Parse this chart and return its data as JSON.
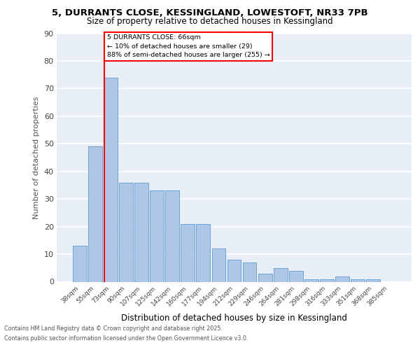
{
  "title1": "5, DURRANTS CLOSE, KESSINGLAND, LOWESTOFT, NR33 7PB",
  "title2": "Size of property relative to detached houses in Kessingland",
  "xlabel": "Distribution of detached houses by size in Kessingland",
  "ylabel": "Number of detached properties",
  "categories": [
    "38sqm",
    "55sqm",
    "73sqm",
    "90sqm",
    "107sqm",
    "125sqm",
    "142sqm",
    "160sqm",
    "177sqm",
    "194sqm",
    "212sqm",
    "229sqm",
    "246sqm",
    "264sqm",
    "281sqm",
    "298sqm",
    "316sqm",
    "333sqm",
    "351sqm",
    "368sqm",
    "385sqm"
  ],
  "bar_vals": [
    13,
    49,
    74,
    36,
    36,
    33,
    33,
    21,
    21,
    12,
    8,
    7,
    3,
    5,
    4,
    1,
    1,
    2,
    1,
    1,
    0
  ],
  "bar_color": "#aec6e8",
  "bar_edge_color": "#5b9bd5",
  "vline_color": "red",
  "annotation_title": "5 DURRANTS CLOSE: 66sqm",
  "annotation_line1": "← 10% of detached houses are smaller (29)",
  "annotation_line2": "88% of semi-detached houses are larger (255) →",
  "annotation_box_color": "red",
  "ylim": [
    0,
    90
  ],
  "yticks": [
    0,
    10,
    20,
    30,
    40,
    50,
    60,
    70,
    80,
    90
  ],
  "footer1": "Contains HM Land Registry data © Crown copyright and database right 2025.",
  "footer2": "Contains public sector information licensed under the Open Government Licence v3.0.",
  "bg_color": "#e8eef5",
  "grid_color": "#ffffff"
}
